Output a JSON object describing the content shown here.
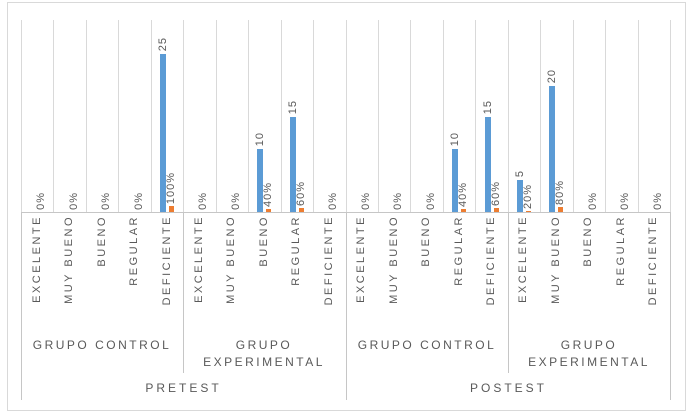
{
  "chart_data": {
    "type": "bar",
    "title": "",
    "legend": "none",
    "gridlines": "vertical-category-only",
    "value_axis": {
      "visible": false,
      "min": 0,
      "max": 30
    },
    "series_colors": {
      "count": "#5B9BD5",
      "percentage": "#ED7D31"
    },
    "category_levels": [
      "EXCELENTE",
      "MUY BUENO",
      "BUENO",
      "REGULAR",
      "DEFICIENTE"
    ],
    "tests": [
      {
        "label": "PRETEST",
        "groups": [
          {
            "label": "GRUPO CONTROL",
            "items": [
              {
                "level": "EXCELENTE",
                "count": 0,
                "pct": 0,
                "count_label": "",
                "pct_label": "0%"
              },
              {
                "level": "MUY BUENO",
                "count": 0,
                "pct": 0,
                "count_label": "",
                "pct_label": "0%"
              },
              {
                "level": "BUENO",
                "count": 0,
                "pct": 0,
                "count_label": "",
                "pct_label": "0%"
              },
              {
                "level": "REGULAR",
                "count": 0,
                "pct": 0,
                "count_label": "",
                "pct_label": "0%"
              },
              {
                "level": "DEFICIENTE",
                "count": 25,
                "pct": 100,
                "count_label": "25",
                "pct_label": "100%"
              }
            ]
          },
          {
            "label": "GRUPO EXPERIMENTAL",
            "items": [
              {
                "level": "EXCELENTE",
                "count": 0,
                "pct": 0,
                "count_label": "",
                "pct_label": "0%"
              },
              {
                "level": "MUY BUENO",
                "count": 0,
                "pct": 0,
                "count_label": "",
                "pct_label": "0%"
              },
              {
                "level": "BUENO",
                "count": 10,
                "pct": 40,
                "count_label": "10",
                "pct_label": "40%"
              },
              {
                "level": "REGULAR",
                "count": 15,
                "pct": 60,
                "count_label": "15",
                "pct_label": "60%"
              },
              {
                "level": "DEFICIENTE",
                "count": 0,
                "pct": 0,
                "count_label": "",
                "pct_label": "0%"
              }
            ]
          }
        ]
      },
      {
        "label": "POSTEST",
        "groups": [
          {
            "label": "GRUPO CONTROL",
            "items": [
              {
                "level": "EXCELENTE",
                "count": 0,
                "pct": 0,
                "count_label": "",
                "pct_label": "0%"
              },
              {
                "level": "MUY BUENO",
                "count": 0,
                "pct": 0,
                "count_label": "",
                "pct_label": "0%"
              },
              {
                "level": "BUENO",
                "count": 0,
                "pct": 0,
                "count_label": "",
                "pct_label": "0%"
              },
              {
                "level": "REGULAR",
                "count": 10,
                "pct": 40,
                "count_label": "10",
                "pct_label": "40%"
              },
              {
                "level": "DEFICIENTE",
                "count": 15,
                "pct": 60,
                "count_label": "15",
                "pct_label": "60%"
              }
            ]
          },
          {
            "label": "GRUPO EXPERIMENTAL",
            "items": [
              {
                "level": "EXCELENTE",
                "count": 5,
                "pct": 20,
                "count_label": "5",
                "pct_label": "20%"
              },
              {
                "level": "MUY BUENO",
                "count": 20,
                "pct": 80,
                "count_label": "20",
                "pct_label": "80%"
              },
              {
                "level": "BUENO",
                "count": 0,
                "pct": 0,
                "count_label": "",
                "pct_label": "0%"
              },
              {
                "level": "REGULAR",
                "count": 0,
                "pct": 0,
                "count_label": "",
                "pct_label": "0%"
              },
              {
                "level": "DEFICIENTE",
                "count": 0,
                "pct": 0,
                "count_label": "",
                "pct_label": "0%"
              }
            ]
          }
        ]
      }
    ]
  },
  "colors": {
    "background": "#FFFFFF",
    "chart_border": "#D9D9D9",
    "gridline": "#D9D9D9",
    "axis_line": "#C6C6C6",
    "label_text": "#595959",
    "bar_blue": "#5B9BD5",
    "bar_orange": "#ED7D31"
  }
}
